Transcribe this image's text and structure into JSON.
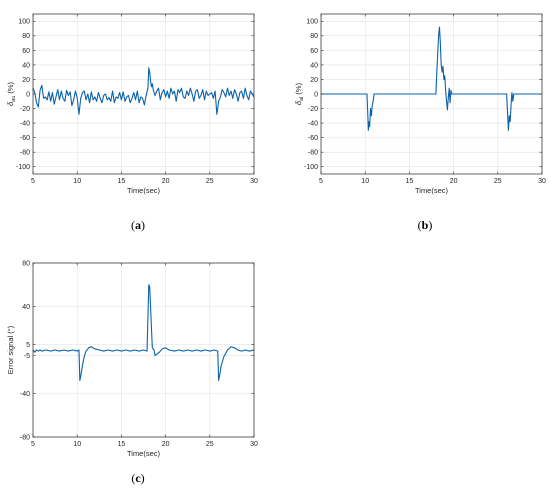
{
  "chart_data": [
    {
      "type": "line",
      "panel": "a",
      "panel_label_open": "(",
      "panel_label_letter": "a",
      "panel_label_close": ")",
      "xlabel": "Time(sec)",
      "ylabel_main": "δ",
      "ylabel_sub": "au",
      "ylabel_unit": "(%)",
      "xlim": [
        5,
        30
      ],
      "ylim": [
        -110,
        110
      ],
      "xticks": [
        5,
        10,
        15,
        20,
        25,
        30
      ],
      "yticks": [
        -100,
        -80,
        -60,
        -40,
        -20,
        0,
        20,
        40,
        60,
        80,
        100
      ],
      "grid": true,
      "color": "#0a62a9",
      "series": [
        {
          "x": [
            5,
            5.2,
            5.4,
            5.6,
            5.8,
            6,
            6.2,
            6.4,
            6.6,
            6.8,
            7,
            7.2,
            7.4,
            7.6,
            7.8,
            8,
            8.2,
            8.4,
            8.6,
            8.8,
            9,
            9.2,
            9.4,
            9.6,
            9.8,
            10,
            10.2,
            10.4,
            10.6,
            10.8,
            11,
            11.2,
            11.4,
            11.6,
            11.8,
            12,
            12.2,
            12.4,
            12.6,
            12.8,
            13,
            13.2,
            13.4,
            13.6,
            13.8,
            14,
            14.2,
            14.4,
            14.6,
            14.8,
            15,
            15.2,
            15.4,
            15.6,
            15.8,
            16,
            16.2,
            16.4,
            16.6,
            16.8,
            17,
            17.2,
            17.4,
            17.6,
            17.8,
            18,
            18.1,
            18.2,
            18.3,
            18.4,
            18.5,
            18.6,
            18.8,
            19,
            19.2,
            19.4,
            19.6,
            19.8,
            20,
            20.2,
            20.4,
            20.6,
            20.8,
            21,
            21.2,
            21.4,
            21.6,
            21.8,
            22,
            22.2,
            22.4,
            22.6,
            22.8,
            23,
            23.2,
            23.4,
            23.6,
            23.8,
            24,
            24.2,
            24.4,
            24.6,
            24.8,
            25,
            25.2,
            25.4,
            25.6,
            25.8,
            26,
            26.2,
            26.4,
            26.6,
            26.8,
            27,
            27.2,
            27.4,
            27.6,
            27.8,
            28,
            28.2,
            28.4,
            28.6,
            28.8,
            29,
            29.2,
            29.4,
            29.6,
            29.8,
            30
          ],
          "y": [
            8,
            2,
            -12,
            -18,
            5,
            12,
            -6,
            -4,
            -8,
            3,
            -10,
            2,
            -14,
            -4,
            6,
            -8,
            4,
            -6,
            -10,
            5,
            -2,
            3,
            -16,
            -8,
            4,
            -5,
            -28,
            -6,
            2,
            4,
            -8,
            0,
            -12,
            3,
            -8,
            -4,
            -10,
            2,
            -6,
            -12,
            -2,
            0,
            -8,
            -5,
            -10,
            4,
            -12,
            -4,
            -6,
            2,
            -8,
            3,
            -10,
            -4,
            -2,
            -12,
            -6,
            2,
            -8,
            4,
            -12,
            -4,
            -6,
            -15,
            -2,
            8,
            36,
            30,
            18,
            10,
            14,
            6,
            -2,
            4,
            8,
            -8,
            2,
            6,
            -4,
            4,
            -6,
            8,
            0,
            4,
            -10,
            6,
            2,
            8,
            -4,
            -6,
            4,
            -2,
            8,
            0,
            -10,
            4,
            6,
            -6,
            -2,
            6,
            -8,
            4,
            -2,
            0,
            2,
            -6,
            4,
            -28,
            -10,
            -4,
            6,
            2,
            -4,
            8,
            -2,
            4,
            -6,
            6,
            0,
            -10,
            2,
            4,
            -6,
            8,
            -2,
            -8,
            4,
            0,
            -4
          ]
        }
      ]
    },
    {
      "type": "line",
      "panel": "b",
      "panel_label_open": "(",
      "panel_label_letter": "b",
      "panel_label_close": ")",
      "xlabel": "Time(sec)",
      "ylabel_main": "δ",
      "ylabel_sub": "al",
      "ylabel_unit": "(%)",
      "xlim": [
        5,
        30
      ],
      "ylim": [
        -110,
        110
      ],
      "xticks": [
        5,
        10,
        15,
        20,
        25,
        30
      ],
      "yticks": [
        -100,
        -80,
        -60,
        -40,
        -20,
        0,
        20,
        40,
        60,
        80,
        100
      ],
      "grid": true,
      "color": "#0a62a9",
      "series": [
        {
          "x": [
            5,
            10.2,
            10.3,
            10.35,
            10.45,
            10.5,
            10.6,
            10.7,
            10.8,
            10.9,
            11,
            18,
            18.1,
            18.2,
            18.3,
            18.4,
            18.5,
            18.6,
            18.7,
            18.8,
            18.9,
            19.0,
            19.1,
            19.2,
            19.3,
            19.4,
            19.5,
            19.6,
            19.7,
            19.8,
            26,
            26.1,
            26.2,
            26.3,
            26.4,
            26.5,
            26.6,
            26.7,
            26.8,
            30
          ],
          "y": [
            0,
            0,
            -30,
            -50,
            -38,
            -45,
            -20,
            -30,
            -15,
            -10,
            0,
            0,
            30,
            55,
            80,
            92,
            70,
            40,
            30,
            38,
            20,
            25,
            5,
            -10,
            -22,
            -5,
            8,
            -12,
            5,
            0,
            0,
            -25,
            -50,
            -30,
            -38,
            -15,
            2,
            -10,
            0,
            0
          ]
        }
      ]
    },
    {
      "type": "line",
      "panel": "c",
      "panel_label_open": "(",
      "panel_label_letter": "c",
      "panel_label_close": ")",
      "xlabel": "Time(sec)",
      "ylabel_main": "Error signal (°)",
      "xlim": [
        5,
        30
      ],
      "ylim": [
        -80,
        80
      ],
      "xticks": [
        5,
        10,
        15,
        20,
        25,
        30
      ],
      "yticks": [
        -80,
        -40,
        -5,
        5,
        40,
        80
      ],
      "grid": true,
      "color": "#0a62a9",
      "series": [
        {
          "x": [
            5,
            5.2,
            5.4,
            5.6,
            5.8,
            6,
            6.5,
            7,
            7.5,
            8,
            8.5,
            9,
            9.5,
            10,
            10.2,
            10.3,
            10.4,
            10.6,
            10.8,
            11,
            11.3,
            11.6,
            12,
            12.5,
            13,
            13.5,
            14,
            14.5,
            15,
            15.5,
            16,
            16.5,
            17,
            17.5,
            17.9,
            18.0,
            18.1,
            18.2,
            18.3,
            18.4,
            18.5,
            18.7,
            18.8,
            19,
            19.3,
            19.6,
            20,
            20.4,
            21,
            21.5,
            22,
            22.5,
            23,
            23.5,
            24,
            24.5,
            25,
            25.5,
            25.9,
            26.0,
            26.1,
            26.3,
            26.6,
            27,
            27.4,
            27.8,
            28.2,
            28.6,
            29,
            29.5,
            30
          ],
          "y": [
            0,
            -2,
            0,
            -1,
            0,
            -1,
            0,
            -1,
            0,
            -1,
            0,
            -1,
            0,
            -1,
            0,
            -28,
            -24,
            -14,
            -6,
            -1,
            2,
            3,
            1,
            0,
            -1,
            0,
            -1,
            0,
            -1,
            0,
            -1,
            0,
            -1,
            0,
            -1,
            30,
            60,
            58,
            40,
            20,
            2,
            0,
            -5,
            -4,
            -2,
            1,
            2,
            0,
            -1,
            0,
            -1,
            0,
            -1,
            0,
            -1,
            0,
            -1,
            0,
            -1,
            -28,
            -24,
            -14,
            -6,
            0,
            3,
            2,
            0,
            -1,
            0,
            -1,
            0
          ]
        }
      ]
    }
  ]
}
